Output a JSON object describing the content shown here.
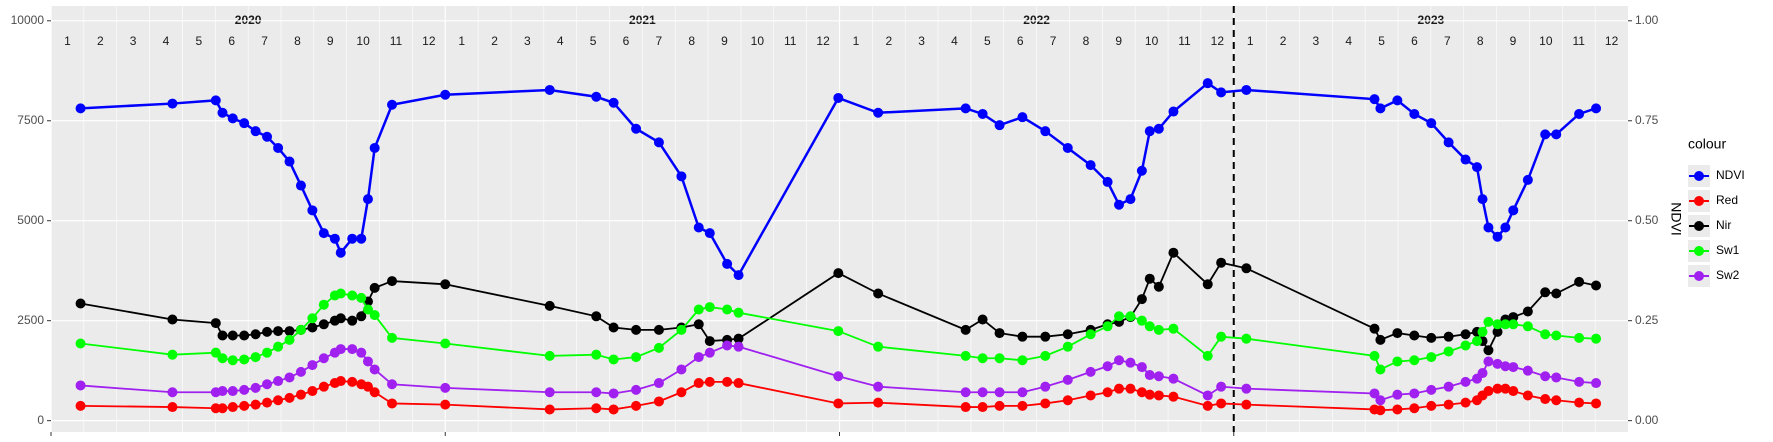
{
  "chart_data": {
    "type": "line",
    "years": [
      2020,
      2021,
      2022,
      2023
    ],
    "months": [
      1,
      2,
      3,
      4,
      5,
      6,
      7,
      8,
      9,
      10,
      11,
      12
    ],
    "xlim": [
      2020,
      2024
    ],
    "ylim": [
      -284,
      10370
    ],
    "yticks": [
      0,
      2500,
      5000,
      7500,
      10000
    ],
    "y2lim": [
      -0.0284,
      1.037
    ],
    "y2ticks": [
      {
        "value": 0,
        "label": "0.00"
      },
      {
        "value": 0.25,
        "label": "0.25"
      },
      {
        "value": 0.5,
        "label": "0.50"
      },
      {
        "value": 0.75,
        "label": "0.75"
      },
      {
        "value": 1,
        "label": "1.00"
      }
    ],
    "y2label": "NDVI",
    "vline": 2023,
    "grid": true,
    "legend_title": "colour",
    "legend_position": "right",
    "x": [
      2020.075,
      2020.308,
      2020.418,
      2020.435,
      2020.461,
      2020.49,
      2020.519,
      2020.548,
      2020.576,
      2020.605,
      2020.634,
      2020.663,
      2020.692,
      2020.72,
      2020.735,
      2020.764,
      2020.787,
      2020.804,
      2020.821,
      2020.865,
      2021.0,
      2021.265,
      2021.383,
      2021.427,
      2021.484,
      2021.542,
      2021.599,
      2021.643,
      2021.671,
      2021.715,
      2021.744,
      2021.997,
      2022.098,
      2022.32,
      2022.363,
      2022.406,
      2022.464,
      2022.522,
      2022.579,
      2022.637,
      2022.68,
      2022.709,
      2022.738,
      2022.767,
      2022.787,
      2022.81,
      2022.847,
      2022.934,
      2022.968,
      2023.032,
      2023.357,
      2023.372,
      2023.415,
      2023.458,
      2023.501,
      2023.545,
      2023.588,
      2023.617,
      2023.631,
      2023.646,
      2023.669,
      2023.689,
      2023.709,
      2023.746,
      2023.79,
      2023.818,
      2023.876,
      2023.919
    ],
    "series": [
      {
        "name": "NDVI",
        "color": "#0000ff",
        "axis": "y2",
        "values": [
          0.781,
          0.793,
          0.801,
          0.77,
          0.756,
          0.744,
          0.724,
          0.71,
          0.682,
          0.648,
          0.588,
          0.526,
          0.469,
          0.455,
          0.42,
          0.455,
          0.455,
          0.554,
          0.682,
          0.79,
          0.815,
          0.827,
          0.81,
          0.795,
          0.73,
          0.696,
          0.611,
          0.483,
          0.469,
          0.392,
          0.364,
          0.807,
          0.77,
          0.781,
          0.767,
          0.739,
          0.759,
          0.724,
          0.682,
          0.639,
          0.597,
          0.54,
          0.554,
          0.625,
          0.724,
          0.73,
          0.773,
          0.844,
          0.821,
          0.827,
          0.804,
          0.781,
          0.801,
          0.767,
          0.744,
          0.696,
          0.653,
          0.634,
          0.554,
          0.483,
          0.46,
          0.483,
          0.526,
          0.602,
          0.716,
          0.716,
          0.767,
          0.781
        ]
      },
      {
        "name": "Red",
        "color": "#ff0000",
        "values": [
          370,
          340,
          310,
          310,
          340,
          370,
          400,
          450,
          510,
          570,
          650,
          740,
          850,
          940,
          990,
          970,
          910,
          850,
          710,
          430,
          400,
          280,
          310,
          280,
          370,
          480,
          710,
          940,
          970,
          970,
          940,
          430,
          450,
          340,
          340,
          370,
          370,
          430,
          510,
          630,
          710,
          800,
          800,
          710,
          650,
          630,
          600,
          370,
          430,
          400,
          280,
          260,
          280,
          310,
          370,
          400,
          450,
          510,
          630,
          740,
          800,
          800,
          740,
          630,
          540,
          510,
          450,
          430
        ]
      },
      {
        "name": "Nir",
        "color": "#000000",
        "values": [
          2930,
          2530,
          2440,
          2130,
          2130,
          2130,
          2160,
          2220,
          2240,
          2240,
          2270,
          2330,
          2410,
          2500,
          2560,
          2500,
          2610,
          2980,
          3320,
          3490,
          3410,
          2870,
          2610,
          2330,
          2270,
          2270,
          2330,
          2410,
          1990,
          2020,
          2050,
          3690,
          3180,
          2270,
          2530,
          2190,
          2100,
          2100,
          2160,
          2270,
          2410,
          2470,
          2590,
          3040,
          3550,
          3350,
          4200,
          3410,
          3950,
          3810,
          2300,
          2020,
          2190,
          2130,
          2070,
          2100,
          2160,
          2220,
          1990,
          1760,
          2220,
          2530,
          2590,
          2730,
          3210,
          3180,
          3470,
          3380
        ]
      },
      {
        "name": "Sw1",
        "color": "#00ff00",
        "values": [
          1930,
          1650,
          1700,
          1560,
          1510,
          1530,
          1590,
          1700,
          1850,
          2020,
          2270,
          2560,
          2900,
          3130,
          3180,
          3130,
          3070,
          2780,
          2640,
          2070,
          1930,
          1620,
          1650,
          1530,
          1590,
          1820,
          2270,
          2780,
          2840,
          2780,
          2700,
          2240,
          1850,
          1620,
          1560,
          1560,
          1510,
          1620,
          1850,
          2160,
          2360,
          2610,
          2610,
          2500,
          2360,
          2270,
          2300,
          1620,
          2100,
          2050,
          1620,
          1280,
          1480,
          1510,
          1590,
          1730,
          1880,
          1990,
          2220,
          2470,
          2410,
          2410,
          2410,
          2360,
          2160,
          2130,
          2070,
          2050
        ]
      },
      {
        "name": "Sw2",
        "color": "#a020f0",
        "values": [
          880,
          710,
          710,
          740,
          740,
          770,
          820,
          910,
          990,
          1080,
          1220,
          1390,
          1560,
          1700,
          1790,
          1790,
          1700,
          1480,
          1280,
          910,
          820,
          710,
          710,
          680,
          770,
          940,
          1280,
          1590,
          1700,
          1880,
          1850,
          1110,
          850,
          710,
          710,
          710,
          710,
          850,
          1020,
          1220,
          1360,
          1510,
          1450,
          1340,
          1140,
          1110,
          1050,
          630,
          850,
          800,
          680,
          510,
          650,
          680,
          770,
          850,
          970,
          1050,
          1190,
          1480,
          1420,
          1360,
          1340,
          1250,
          1110,
          1080,
          970,
          940
        ]
      }
    ]
  }
}
